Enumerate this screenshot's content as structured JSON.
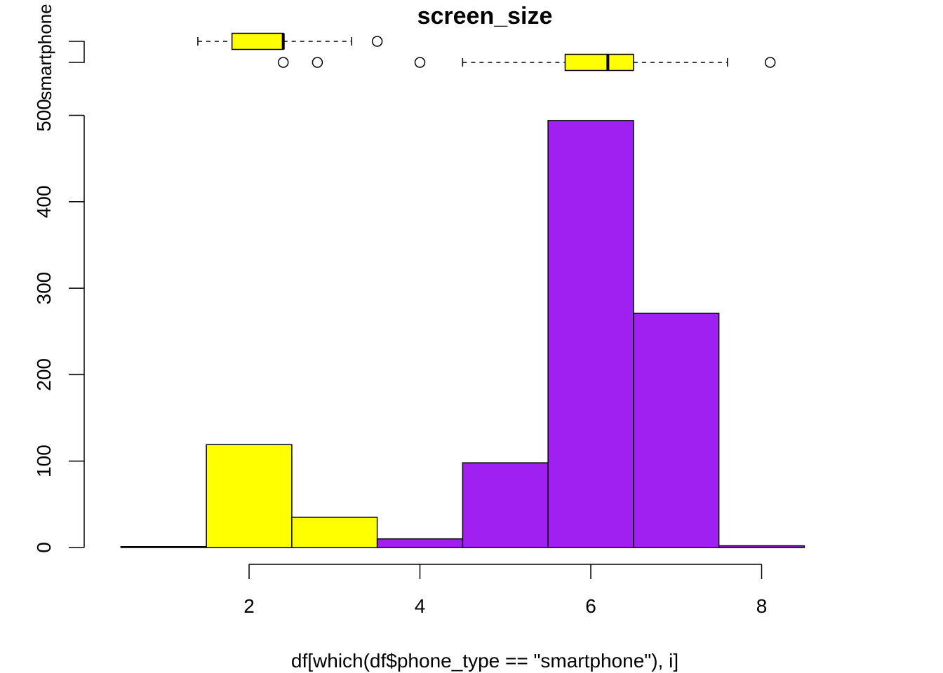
{
  "chart_data": {
    "type": "bar",
    "title": "screen_size",
    "xlabel": "df[which(df$phone_type == \"smartphone\"), i]",
    "ylabel": "",
    "group_label": "smartphone",
    "x_ticks": [
      "2",
      "4",
      "6",
      "8"
    ],
    "y_ticks": [
      "0",
      "100",
      "200",
      "300",
      "400",
      "500"
    ],
    "xlim": [
      0.4,
      8.4
    ],
    "ylim": [
      0,
      500
    ],
    "bin_width": 1,
    "bins": [
      {
        "x": 1,
        "count": 1,
        "color": "#9f20f0"
      },
      {
        "x": 2,
        "count": 119,
        "color": "#ffff00"
      },
      {
        "x": 3,
        "count": 35,
        "color": "#ffff00"
      },
      {
        "x": 4,
        "count": 10,
        "color": "#9f20f0"
      },
      {
        "x": 5,
        "count": 98,
        "color": "#9f20f0"
      },
      {
        "x": 6,
        "count": 494,
        "color": "#9f20f0"
      },
      {
        "x": 7,
        "count": 271,
        "color": "#9f20f0"
      },
      {
        "x": 8,
        "count": 2,
        "color": "#9f20f0"
      }
    ],
    "boxplots": [
      {
        "row": "top",
        "whisker_low": 1.4,
        "q1": 1.8,
        "median": 2.4,
        "q3": 2.4,
        "whisker_high": 3.2,
        "outliers": [
          3.5
        ],
        "fill": "#ffff00"
      },
      {
        "row": "bottom",
        "whisker_low": 4.5,
        "q1": 5.7,
        "median": 6.2,
        "q3": 6.5,
        "whisker_high": 7.6,
        "outliers": [
          2.4,
          2.8,
          4.0,
          8.1
        ],
        "fill": "#ffff00"
      }
    ],
    "grid": false,
    "legend": "none"
  }
}
